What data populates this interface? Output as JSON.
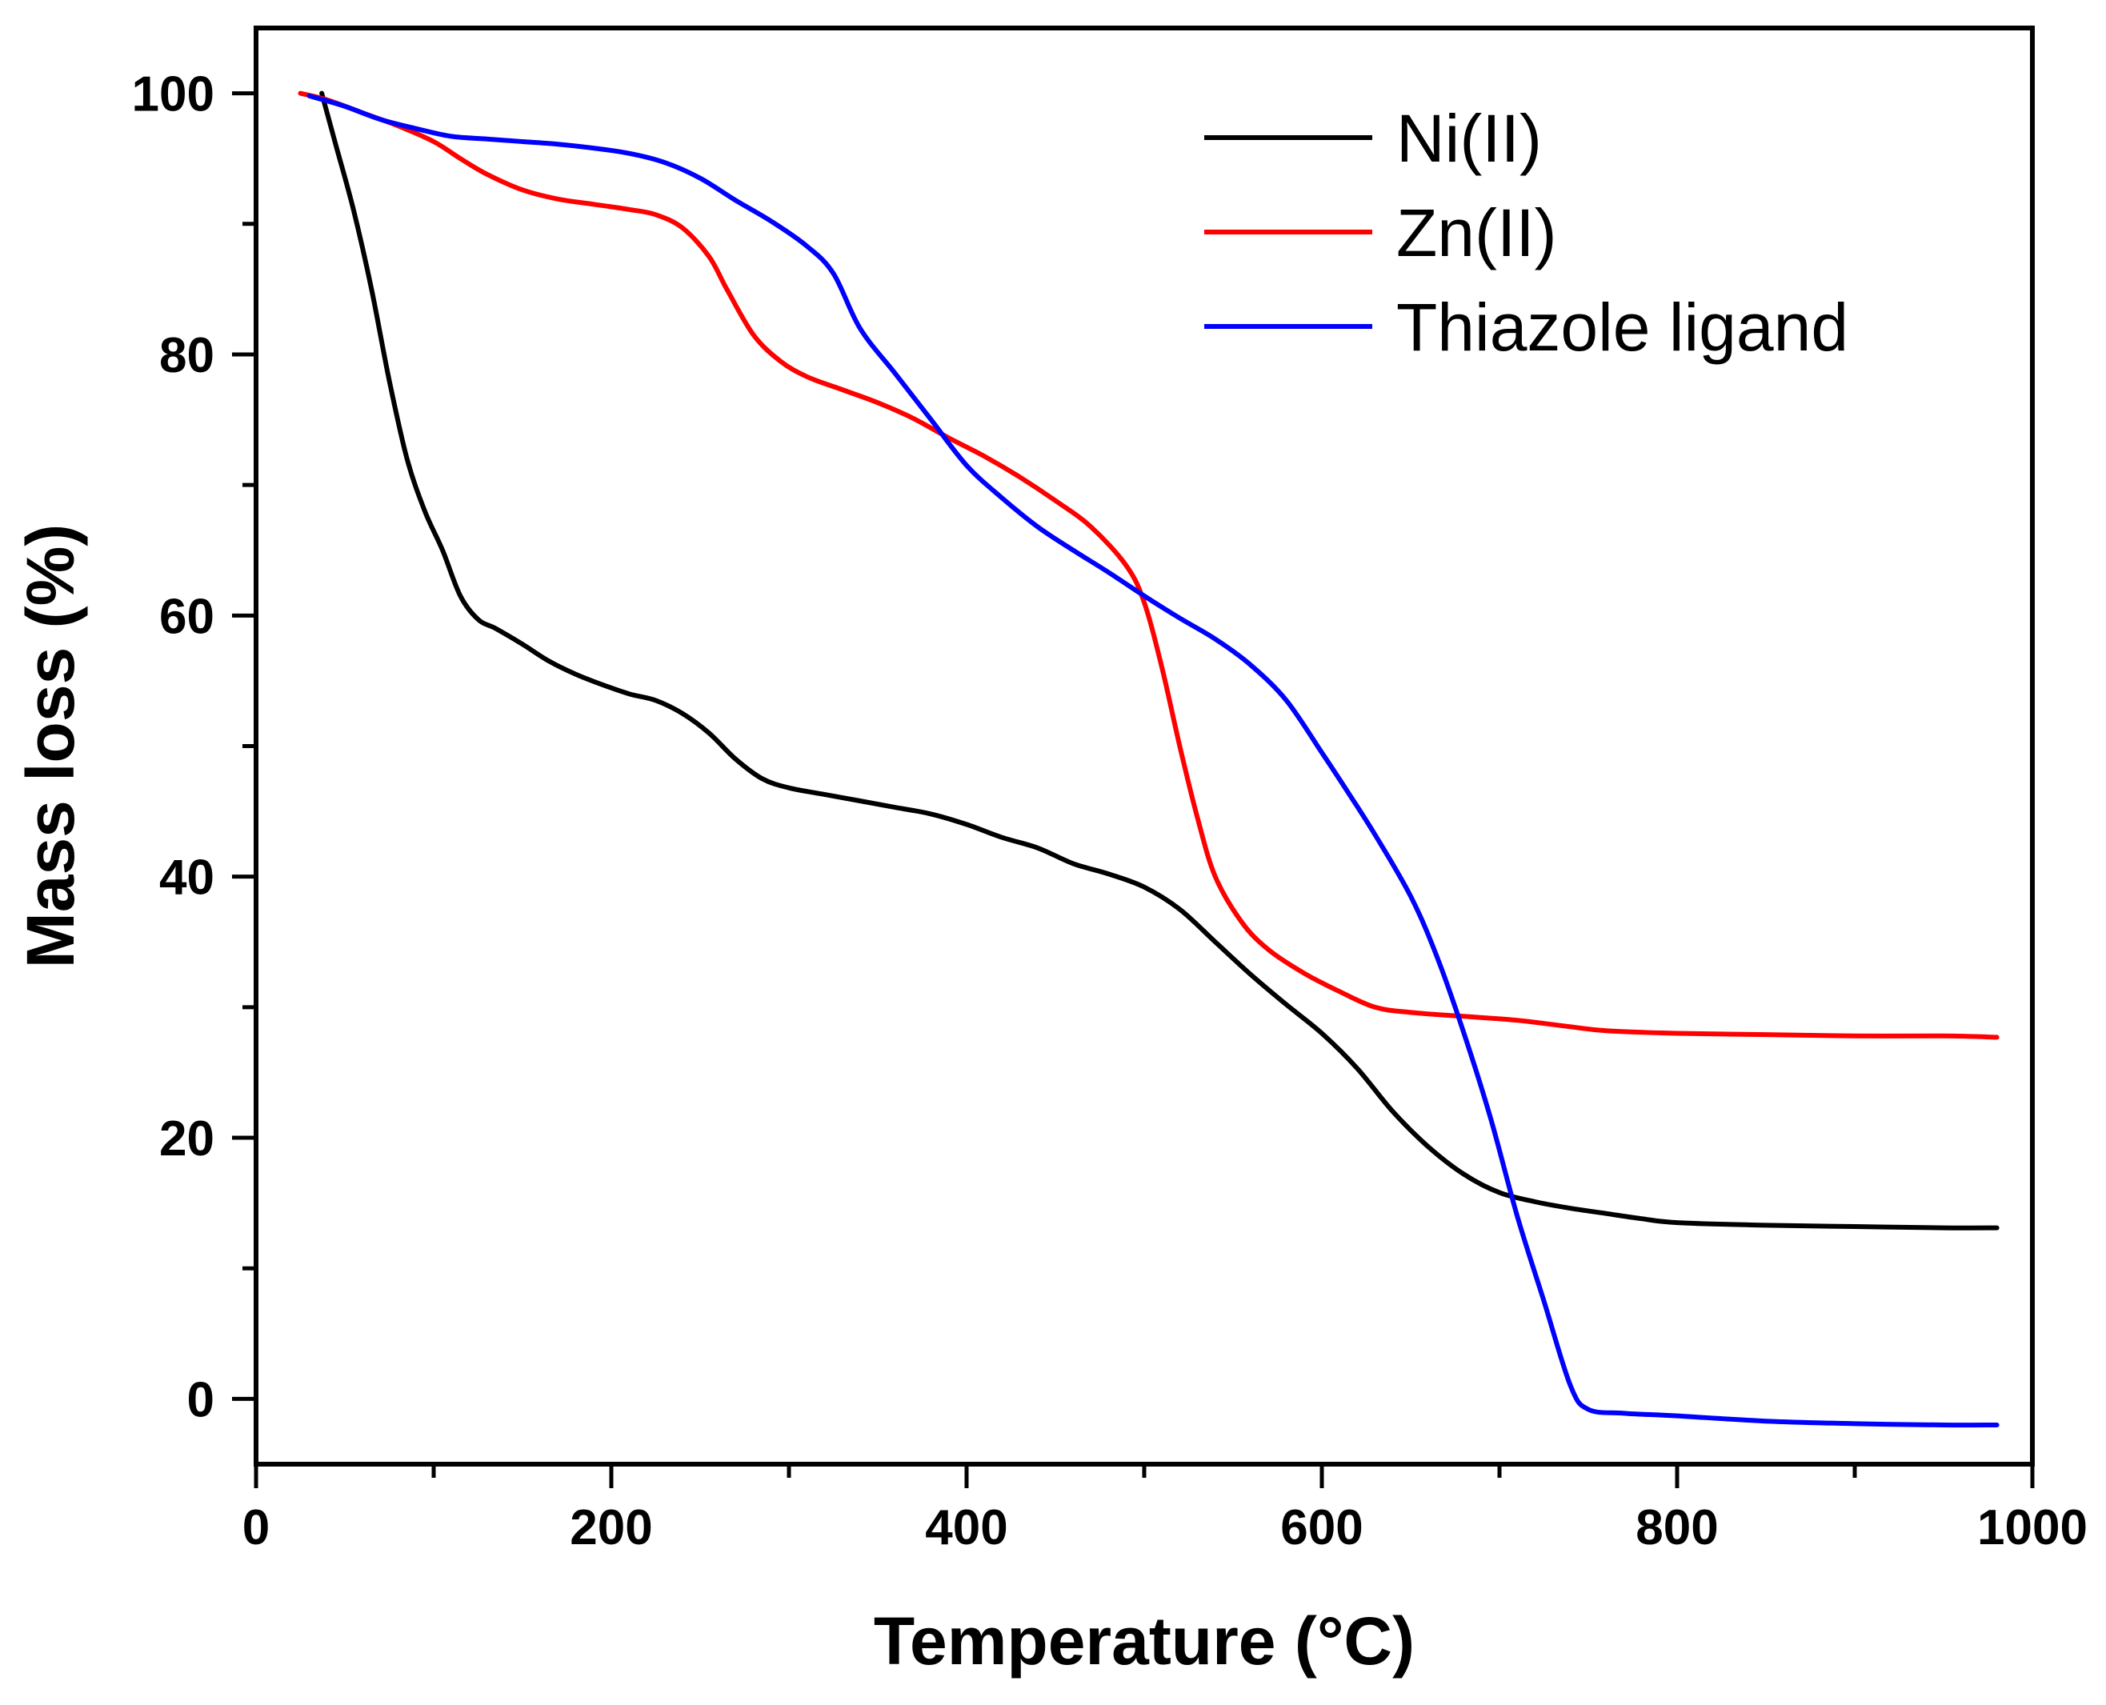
{
  "chart_data": {
    "type": "line",
    "title": "",
    "xlabel": "Temperature (°C)",
    "ylabel": "Mass loss (%)",
    "xlim": [
      0,
      1000
    ],
    "ylim": [
      -5,
      105
    ],
    "xticks": [
      0,
      200,
      400,
      600,
      800,
      1000
    ],
    "xticks_minor": [
      100,
      300,
      500,
      700,
      900
    ],
    "yticks": [
      0,
      20,
      40,
      60,
      80,
      100
    ],
    "yticks_minor": [
      10,
      30,
      50,
      70,
      90
    ],
    "grid": false,
    "legend_position": "top-right",
    "series": [
      {
        "name": "Ni(II)",
        "color": "#000000",
        "points": [
          [
            37,
            100
          ],
          [
            45,
            96
          ],
          [
            55,
            91
          ],
          [
            65,
            85
          ],
          [
            75,
            78
          ],
          [
            85,
            72
          ],
          [
            95,
            68
          ],
          [
            105,
            65
          ],
          [
            115,
            61.5
          ],
          [
            125,
            59.7
          ],
          [
            135,
            59
          ],
          [
            150,
            57.8
          ],
          [
            165,
            56.5
          ],
          [
            180,
            55.5
          ],
          [
            195,
            54.7
          ],
          [
            210,
            54
          ],
          [
            225,
            53.5
          ],
          [
            240,
            52.5
          ],
          [
            255,
            51
          ],
          [
            270,
            49
          ],
          [
            285,
            47.5
          ],
          [
            300,
            46.8
          ],
          [
            320,
            46.3
          ],
          [
            340,
            45.8
          ],
          [
            360,
            45.3
          ],
          [
            380,
            44.8
          ],
          [
            400,
            44
          ],
          [
            420,
            43
          ],
          [
            440,
            42.2
          ],
          [
            460,
            41
          ],
          [
            480,
            40.2
          ],
          [
            500,
            39.2
          ],
          [
            520,
            37.5
          ],
          [
            540,
            35
          ],
          [
            560,
            32.5
          ],
          [
            580,
            30.2
          ],
          [
            600,
            28
          ],
          [
            620,
            25.3
          ],
          [
            640,
            22
          ],
          [
            660,
            19.3
          ],
          [
            680,
            17.2
          ],
          [
            700,
            15.8
          ],
          [
            720,
            15.1
          ],
          [
            740,
            14.6
          ],
          [
            760,
            14.2
          ],
          [
            780,
            13.8
          ],
          [
            800,
            13.5
          ],
          [
            850,
            13.3
          ],
          [
            900,
            13.2
          ],
          [
            950,
            13.1
          ],
          [
            980,
            13.1
          ]
        ]
      },
      {
        "name": "Zn(II)",
        "color": "#ff0000",
        "points": [
          [
            25,
            100
          ],
          [
            40,
            99.5
          ],
          [
            60,
            98.5
          ],
          [
            80,
            97.5
          ],
          [
            100,
            96.3
          ],
          [
            115,
            95
          ],
          [
            130,
            93.8
          ],
          [
            150,
            92.6
          ],
          [
            170,
            91.9
          ],
          [
            190,
            91.5
          ],
          [
            210,
            91.1
          ],
          [
            225,
            90.7
          ],
          [
            240,
            89.7
          ],
          [
            255,
            87.5
          ],
          [
            265,
            85
          ],
          [
            280,
            81.5
          ],
          [
            295,
            79.5
          ],
          [
            310,
            78.3
          ],
          [
            330,
            77.3
          ],
          [
            350,
            76.3
          ],
          [
            370,
            75.1
          ],
          [
            390,
            73.6
          ],
          [
            410,
            72.2
          ],
          [
            430,
            70.6
          ],
          [
            450,
            68.8
          ],
          [
            470,
            66.8
          ],
          [
            490,
            63.8
          ],
          [
            500,
            61
          ],
          [
            510,
            56
          ],
          [
            520,
            50
          ],
          [
            530,
            44.5
          ],
          [
            540,
            40
          ],
          [
            555,
            36.5
          ],
          [
            570,
            34.4
          ],
          [
            590,
            32.6
          ],
          [
            610,
            31.2
          ],
          [
            630,
            30
          ],
          [
            650,
            29.6
          ],
          [
            680,
            29.3
          ],
          [
            710,
            29
          ],
          [
            740,
            28.5
          ],
          [
            760,
            28.2
          ],
          [
            800,
            28
          ],
          [
            850,
            27.9
          ],
          [
            900,
            27.8
          ],
          [
            950,
            27.8
          ],
          [
            980,
            27.7
          ]
        ]
      },
      {
        "name": "Thiazole ligand",
        "color": "#0000ff",
        "points": [
          [
            30,
            99.8
          ],
          [
            50,
            99
          ],
          [
            70,
            98
          ],
          [
            90,
            97.3
          ],
          [
            110,
            96.7
          ],
          [
            130,
            96.5
          ],
          [
            150,
            96.3
          ],
          [
            170,
            96.1
          ],
          [
            190,
            95.8
          ],
          [
            210,
            95.4
          ],
          [
            230,
            94.7
          ],
          [
            250,
            93.5
          ],
          [
            270,
            91.8
          ],
          [
            290,
            90.2
          ],
          [
            310,
            88.3
          ],
          [
            325,
            86.2
          ],
          [
            340,
            82
          ],
          [
            360,
            78.5
          ],
          [
            380,
            75
          ],
          [
            400,
            71.5
          ],
          [
            420,
            69
          ],
          [
            440,
            66.8
          ],
          [
            460,
            65
          ],
          [
            480,
            63.3
          ],
          [
            500,
            61.5
          ],
          [
            520,
            59.8
          ],
          [
            540,
            58.2
          ],
          [
            560,
            56.2
          ],
          [
            580,
            53.5
          ],
          [
            600,
            49.5
          ],
          [
            615,
            46.4
          ],
          [
            630,
            43.2
          ],
          [
            650,
            38.5
          ],
          [
            665,
            33.8
          ],
          [
            680,
            28
          ],
          [
            695,
            21.5
          ],
          [
            710,
            14
          ],
          [
            725,
            7.5
          ],
          [
            740,
            1
          ],
          [
            750,
            -0.8
          ],
          [
            770,
            -1.1
          ],
          [
            800,
            -1.3
          ],
          [
            850,
            -1.7
          ],
          [
            900,
            -1.9
          ],
          [
            950,
            -2
          ],
          [
            980,
            -2
          ]
        ]
      }
    ]
  }
}
